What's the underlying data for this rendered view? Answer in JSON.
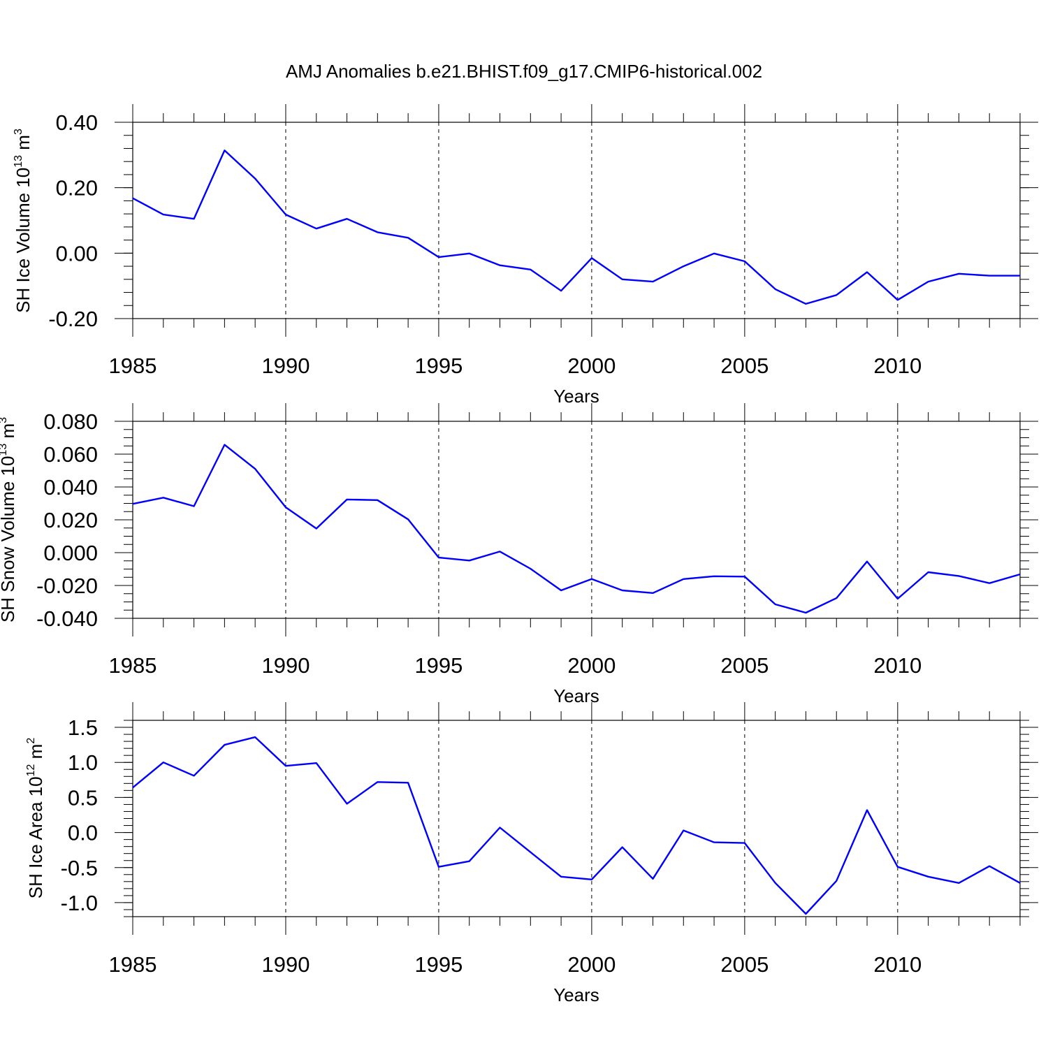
{
  "title": "AMJ Anomalies b.e21.BHIST.f09_g17.CMIP6-historical.002",
  "line_color": "#0000ff",
  "chart_data": [
    {
      "type": "line",
      "ylabel": "SH Ice Volume 10",
      "ylabel_sup": "13",
      "ylabel_unit": "m",
      "ylabel_unit_sup": "3",
      "xlabel": "Years",
      "xlim": [
        1985,
        2014
      ],
      "ylim": [
        -0.2,
        0.4
      ],
      "xticks": [
        1985,
        1990,
        1995,
        2000,
        2005,
        2010
      ],
      "xtick_labels": [
        "1985",
        "1990",
        "1995",
        "2000",
        "2005",
        "2010"
      ],
      "yticks": [
        -0.2,
        0.0,
        0.2,
        0.4
      ],
      "ytick_labels": [
        "-0.20",
        "0.00",
        "0.20",
        "0.40"
      ],
      "minor_ystep": 0.04,
      "grid": "dashed vertical at major x ticks",
      "x": [
        1985,
        1986,
        1987,
        1988,
        1989,
        1990,
        1991,
        1992,
        1993,
        1994,
        1995,
        1996,
        1997,
        1998,
        1999,
        2000,
        2001,
        2002,
        2003,
        2004,
        2005,
        2006,
        2007,
        2008,
        2009,
        2010,
        2011,
        2012,
        2013,
        2014
      ],
      "series": [
        {
          "name": "SH Ice Volume",
          "values": [
            0.168,
            0.118,
            0.105,
            0.314,
            0.228,
            0.118,
            0.075,
            0.105,
            0.064,
            0.047,
            -0.012,
            -0.001,
            -0.037,
            -0.05,
            -0.115,
            -0.015,
            -0.08,
            -0.087,
            -0.04,
            -0.001,
            -0.025,
            -0.11,
            -0.155,
            -0.128,
            -0.058,
            -0.143,
            -0.087,
            -0.063,
            -0.069,
            -0.069
          ]
        }
      ]
    },
    {
      "type": "line",
      "ylabel": "SH Snow Volume 10",
      "ylabel_sup": "13",
      "ylabel_unit": "m",
      "ylabel_unit_sup": "3",
      "xlabel": "Years",
      "xlim": [
        1985,
        2014
      ],
      "ylim": [
        -0.04,
        0.08
      ],
      "xticks": [
        1985,
        1990,
        1995,
        2000,
        2005,
        2010
      ],
      "xtick_labels": [
        "1985",
        "1990",
        "1995",
        "2000",
        "2005",
        "2010"
      ],
      "yticks": [
        -0.04,
        -0.02,
        0.0,
        0.02,
        0.04,
        0.06,
        0.08
      ],
      "ytick_labels": [
        "-0.040",
        "-0.020",
        "0.000",
        "0.020",
        "0.040",
        "0.060",
        "0.080"
      ],
      "minor_ystep": 0.005,
      "grid": "dashed vertical at major x ticks",
      "x": [
        1985,
        1986,
        1987,
        1988,
        1989,
        1990,
        1991,
        1992,
        1993,
        1994,
        1995,
        1996,
        1997,
        1998,
        1999,
        2000,
        2001,
        2002,
        2003,
        2004,
        2005,
        2006,
        2007,
        2008,
        2009,
        2010,
        2011,
        2012,
        2013,
        2014
      ],
      "series": [
        {
          "name": "SH Snow Volume",
          "values": [
            0.0297,
            0.0335,
            0.0283,
            0.0657,
            0.051,
            0.0276,
            0.0147,
            0.0324,
            0.032,
            0.0203,
            -0.003,
            -0.0048,
            0.0007,
            -0.0098,
            -0.023,
            -0.0161,
            -0.023,
            -0.0246,
            -0.0161,
            -0.0144,
            -0.0146,
            -0.0315,
            -0.0366,
            -0.0277,
            -0.0054,
            -0.0281,
            -0.0119,
            -0.0142,
            -0.0186,
            -0.0132
          ]
        }
      ]
    },
    {
      "type": "line",
      "ylabel": "SH Ice Area 10",
      "ylabel_sup": "12",
      "ylabel_unit": "m",
      "ylabel_unit_sup": "2",
      "xlabel": "Years",
      "xlim": [
        1985,
        2014
      ],
      "ylim": [
        -1.2,
        1.6
      ],
      "xticks": [
        1985,
        1990,
        1995,
        2000,
        2005,
        2010
      ],
      "xtick_labels": [
        "1985",
        "1990",
        "1995",
        "2000",
        "2005",
        "2010"
      ],
      "yticks": [
        -1.0,
        -0.5,
        0.0,
        0.5,
        1.0,
        1.5
      ],
      "ytick_labels": [
        "-1.0",
        "-0.5",
        "0.0",
        "0.5",
        "1.0",
        "1.5"
      ],
      "minor_ystep": 0.1,
      "grid": "dashed vertical at major x ticks",
      "x": [
        1985,
        1986,
        1987,
        1988,
        1989,
        1990,
        1991,
        1992,
        1993,
        1994,
        1995,
        1996,
        1997,
        1998,
        1999,
        2000,
        2001,
        2002,
        2003,
        2004,
        2005,
        2006,
        2007,
        2008,
        2009,
        2010,
        2011,
        2012,
        2013,
        2014
      ],
      "series": [
        {
          "name": "SH Ice Area",
          "values": [
            0.64,
            1.0,
            0.81,
            1.25,
            1.36,
            0.95,
            0.99,
            0.41,
            0.72,
            0.71,
            -0.49,
            -0.41,
            0.07,
            -0.28,
            -0.63,
            -0.67,
            -0.21,
            -0.66,
            0.03,
            -0.14,
            -0.15,
            -0.72,
            -1.16,
            -0.69,
            0.32,
            -0.49,
            -0.63,
            -0.72,
            -0.48,
            -0.72
          ]
        }
      ]
    }
  ]
}
